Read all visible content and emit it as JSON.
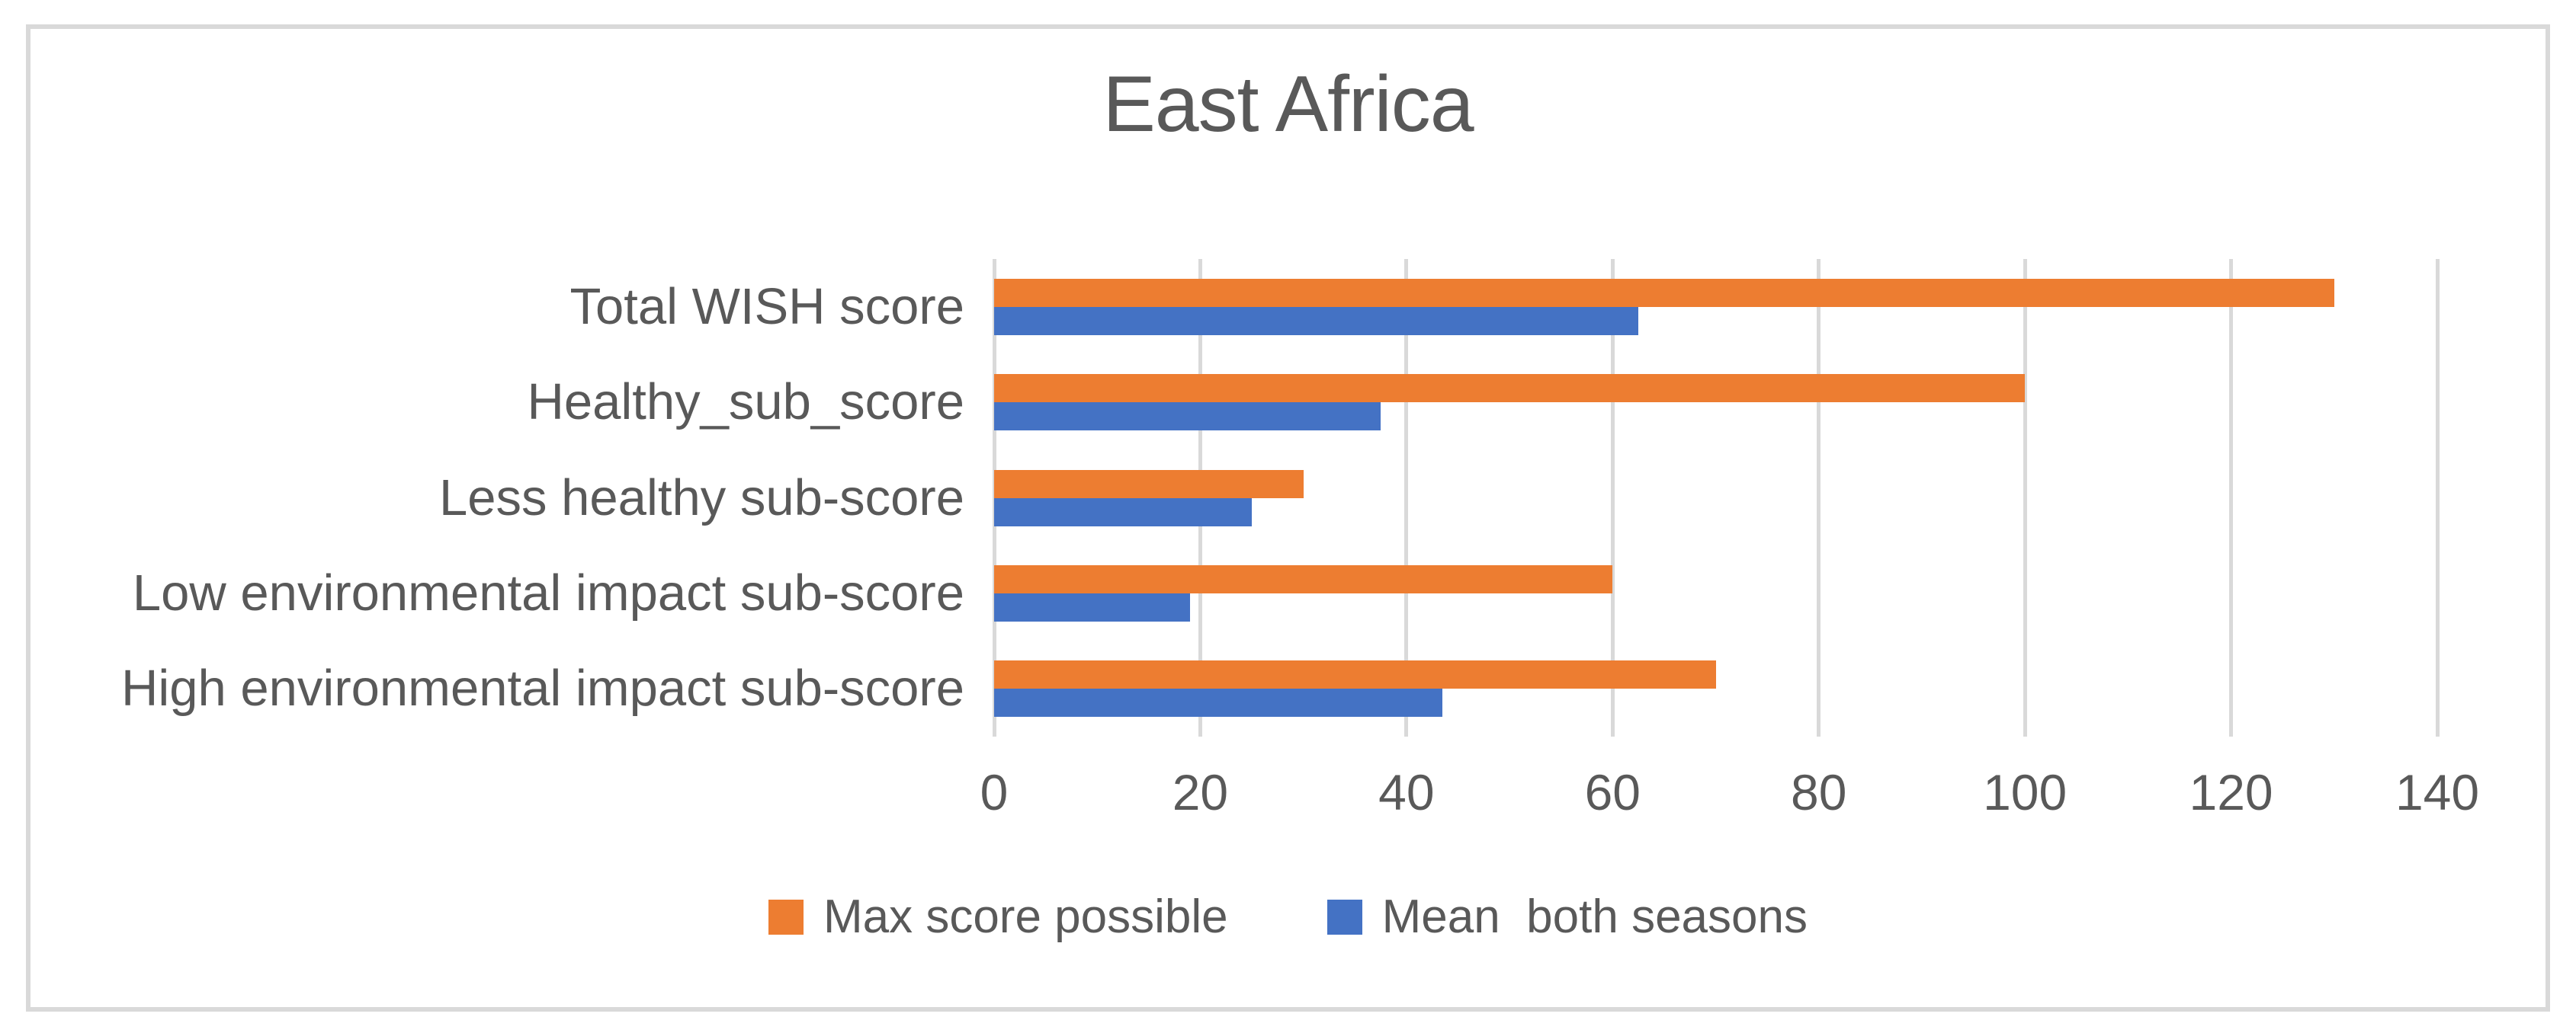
{
  "chart_data": {
    "type": "bar",
    "orientation": "horizontal",
    "title": "East Africa",
    "categories": [
      "Total WISH score",
      "Healthy_sub_score",
      "Less healthy sub-score",
      "Low environmental impact sub-score",
      "High environmental impact sub-score"
    ],
    "series": [
      {
        "name": "Max score possible",
        "color": "#ED7D31",
        "values": [
          130,
          100,
          30,
          60,
          70
        ]
      },
      {
        "name": "Mean  both seasons",
        "color": "#4472C4",
        "values": [
          62.5,
          37.5,
          25,
          19,
          43.5
        ]
      }
    ],
    "x_ticks": [
      0,
      20,
      40,
      60,
      80,
      100,
      120,
      140
    ],
    "xlim": [
      0,
      140
    ],
    "grid": "vertical-gridlines",
    "legend_position": "bottom",
    "colors": {
      "text": "#595959",
      "gridline": "#D9D9D9",
      "frame_border": "#D9D9D9",
      "background": "#FFFFFF"
    }
  }
}
